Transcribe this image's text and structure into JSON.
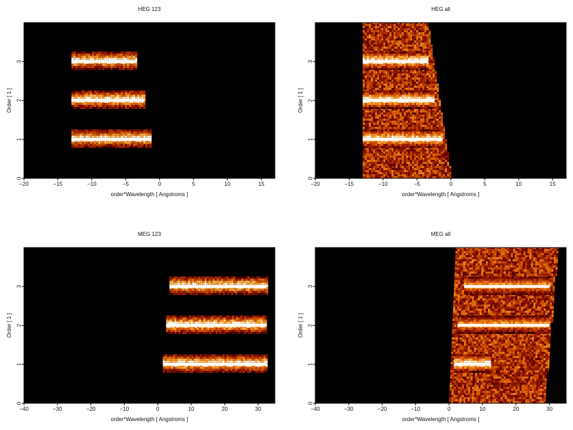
{
  "chart_data": [
    {
      "type": "heatmap",
      "title": "HEG 123",
      "xlabel": "order*Wavelength [ Angstroms ]",
      "ylabel": "Order [ 1 ]",
      "xlim": [
        -20,
        17
      ],
      "ylim": [
        0,
        4
      ],
      "xticks": [
        "−20",
        "−15",
        "−10",
        "−5",
        "0",
        "5",
        "10",
        "15"
      ],
      "xtick_values": [
        -20,
        -15,
        -10,
        -5,
        0,
        5,
        10,
        15
      ],
      "yticks": [
        "0",
        "1",
        "2",
        "3"
      ],
      "ytick_values": [
        0,
        1,
        2,
        3
      ],
      "colormap": [
        "#000000",
        "#5a0000",
        "#a02000",
        "#e06000",
        "#ffb040",
        "#ffffff"
      ],
      "bands": [
        {
          "order": 1,
          "x_start": -13,
          "x_end": -1.2,
          "brightness": 1.0
        },
        {
          "order": 2,
          "x_start": -13,
          "x_end": -2.3,
          "brightness": 1.0
        },
        {
          "order": 3,
          "x_start": -13,
          "x_end": -3.5,
          "brightness": 1.0
        }
      ]
    },
    {
      "type": "heatmap",
      "title": "HEG all",
      "xlabel": "order*Wavelength [ Angstroms ]",
      "ylabel": "Order [ 1 ]",
      "xlim": [
        -20,
        17
      ],
      "ylim": [
        0,
        4
      ],
      "xticks": [
        "−20",
        "−15",
        "−10",
        "−5",
        "0",
        "5",
        "10",
        "15"
      ],
      "xtick_values": [
        -20,
        -15,
        -10,
        -5,
        0,
        5,
        10,
        15
      ],
      "yticks": [
        "0",
        "1",
        "2",
        "3"
      ],
      "ytick_values": [
        0,
        1,
        2,
        3
      ],
      "colormap": [
        "#000000",
        "#5a0000",
        "#a02000",
        "#e06000",
        "#ffb040",
        "#ffffff"
      ],
      "bands": [
        {
          "order": 1,
          "x_start": -13,
          "x_end": -1.3,
          "brightness": 1.0
        },
        {
          "order": 2,
          "x_start": -13,
          "x_end": -2.4,
          "brightness": 1.0
        },
        {
          "order": 3,
          "x_start": -13,
          "x_end": -3.5,
          "brightness": 1.0
        }
      ],
      "background": {
        "x_start": -13,
        "edge_top": -3.5,
        "edge_bottom": 0
      }
    },
    {
      "type": "heatmap",
      "title": "MEG 123",
      "xlabel": "order*Wavelength [ Angstroms ]",
      "ylabel": "Order [ 1 ]",
      "xlim": [
        -40,
        35
      ],
      "ylim": [
        0,
        4
      ],
      "xticks": [
        "−40",
        "−30",
        "−20",
        "−10",
        "0",
        "10",
        "20",
        "30"
      ],
      "xtick_values": [
        -40,
        -30,
        -20,
        -10,
        0,
        10,
        20,
        30
      ],
      "yticks": [
        "0",
        "1",
        "2",
        "3"
      ],
      "ytick_values": [
        0,
        1,
        2,
        3
      ],
      "colormap": [
        "#000000",
        "#5a0000",
        "#a02000",
        "#e06000",
        "#ffb040",
        "#ffffff"
      ],
      "bands": [
        {
          "order": 1,
          "x_start": 1.5,
          "x_end": 32.5,
          "brightness": 1.0
        },
        {
          "order": 2,
          "x_start": 2.5,
          "x_end": 32.5,
          "brightness": 1.0
        },
        {
          "order": 3,
          "x_start": 3.5,
          "x_end": 32.5,
          "brightness": 1.0
        }
      ]
    },
    {
      "type": "heatmap",
      "title": "MEG all",
      "xlabel": "order*Wavelength [ Angstroms ]",
      "ylabel": "Order [ 1 ]",
      "xlim": [
        -40,
        35
      ],
      "ylim": [
        0,
        4
      ],
      "xticks": [
        "−40",
        "−30",
        "−20",
        "−10",
        "0",
        "10",
        "20",
        "30"
      ],
      "xtick_values": [
        -40,
        -30,
        -20,
        -10,
        0,
        10,
        20,
        30
      ],
      "yticks": [
        "0",
        "1",
        "2",
        "3"
      ],
      "ytick_values": [
        0,
        1,
        2,
        3
      ],
      "colormap": [
        "#000000",
        "#5a0000",
        "#a02000",
        "#e06000",
        "#ffb040",
        "#ffffff"
      ],
      "bands": [
        {
          "order": 1,
          "x_start": 1.5,
          "x_end": 12,
          "brightness": 1.0
        },
        {
          "order": 2,
          "x_start": 2.5,
          "x_end": 30,
          "brightness": 0.8
        },
        {
          "order": 3,
          "x_start": 4.5,
          "x_end": 30,
          "brightness": 0.8
        }
      ],
      "background": {
        "x_start": 0,
        "edge_top": 4,
        "edge_bottom": 0,
        "x_end": 32.5
      }
    }
  ]
}
